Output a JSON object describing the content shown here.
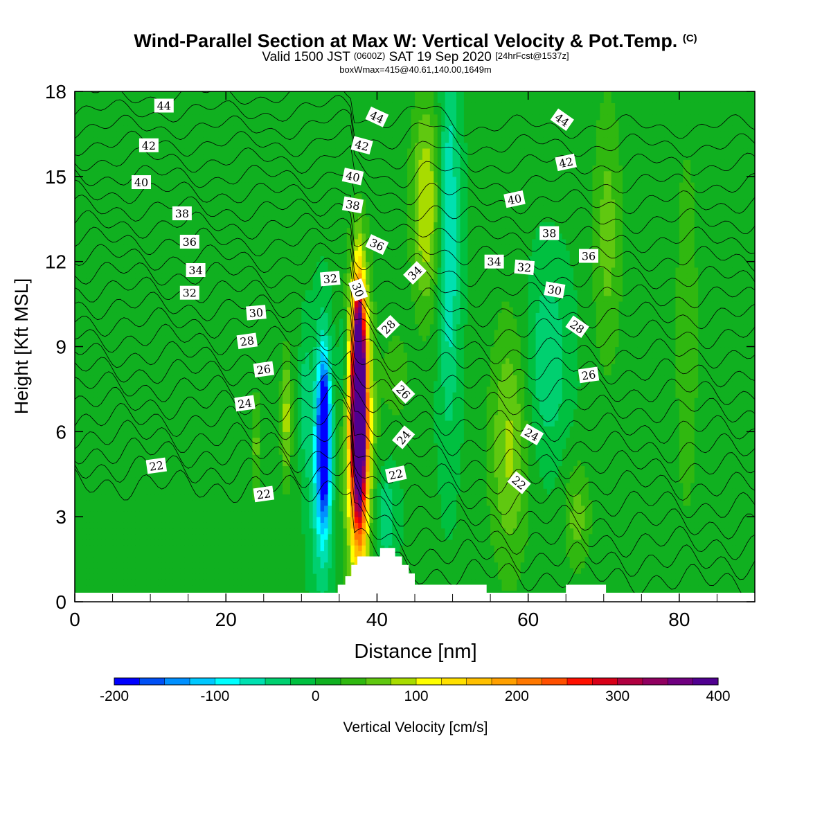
{
  "title": {
    "main": "Wind-Parallel Section at Max W: Vertical Velocity & Pot.Temp.",
    "copyright": "(C)",
    "valid_prefix": "Valid 1500 JST",
    "utc": "(0600Z)",
    "valid_date": "SAT 19 Sep 2020",
    "forecast": "[24hrFcst@1537z]",
    "box": "boxWmax=415@40.61,140.00,1649m"
  },
  "chart_data": {
    "type": "heatmap",
    "xlabel": "Distance [nm]",
    "ylabel": "Height [Kft MSL]",
    "xlim": [
      0,
      90
    ],
    "ylim": [
      0,
      18
    ],
    "x_ticks": [
      0,
      20,
      40,
      60,
      80
    ],
    "y_ticks": [
      0,
      3,
      6,
      9,
      12,
      15,
      18
    ],
    "colorbar": {
      "label": "Vertical Velocity [cm/s]",
      "range": [
        -200,
        400
      ],
      "step": 25,
      "tick_labels": [
        "-200",
        "-100",
        "0",
        "100",
        "200",
        "300",
        "400"
      ],
      "colors": [
        "#0000ff",
        "#0050f5",
        "#0090ff",
        "#00c8ff",
        "#00ffff",
        "#00e0b0",
        "#00d070",
        "#00c040",
        "#10b020",
        "#30b810",
        "#60c810",
        "#a8dc00",
        "#ffff00",
        "#ffe000",
        "#ffc000",
        "#ffa000",
        "#ff7800",
        "#ff5000",
        "#ff1000",
        "#d80018",
        "#b00040",
        "#900060",
        "#700080",
        "#500090"
      ]
    },
    "background_value": 5,
    "features": [
      {
        "x": 33.0,
        "y_center": 6.0,
        "half_width": 0.7,
        "half_height": 2.5,
        "value": -190
      },
      {
        "x": 32.7,
        "y_center": 5.0,
        "half_width": 1.4,
        "half_height": 4.0,
        "value": -120
      },
      {
        "x": 37.6,
        "y_center": 7.5,
        "half_width": 0.6,
        "half_height": 3.0,
        "value": 400
      },
      {
        "x": 37.6,
        "y_center": 6.5,
        "half_width": 1.1,
        "half_height": 4.3,
        "value": 290
      },
      {
        "x": 37.6,
        "y_center": 6.0,
        "half_width": 1.9,
        "half_height": 5.3,
        "value": 150
      },
      {
        "x": 46.5,
        "y_center": 14.0,
        "half_width": 2.0,
        "half_height": 3.8,
        "value": 100
      },
      {
        "x": 49.5,
        "y_center": 13.0,
        "half_width": 1.4,
        "half_height": 6.5,
        "value": -80
      },
      {
        "x": 57.5,
        "y_center": 5.5,
        "half_width": 2.6,
        "half_height": 4.5,
        "value": 80
      },
      {
        "x": 62.5,
        "y_center": 8.5,
        "half_width": 2.8,
        "half_height": 3.2,
        "value": -50
      },
      {
        "x": 66.5,
        "y_center": 3.0,
        "half_width": 1.8,
        "half_height": 2.0,
        "value": 60
      },
      {
        "x": 28.0,
        "y_center": 6.5,
        "half_width": 0.7,
        "half_height": 2.3,
        "value": 90
      },
      {
        "x": 30.5,
        "y_center": 7.0,
        "half_width": 0.6,
        "half_height": 2.5,
        "value": -40
      },
      {
        "x": 35.5,
        "y_center": 8.5,
        "half_width": 0.6,
        "half_height": 1.8,
        "value": -50
      },
      {
        "x": 41.0,
        "y_center": 3.0,
        "half_width": 1.6,
        "half_height": 1.6,
        "value": -50
      },
      {
        "x": 42.5,
        "y_center": 8.0,
        "half_width": 1.8,
        "half_height": 1.8,
        "value": 40
      },
      {
        "x": 70.5,
        "y_center": 13.0,
        "half_width": 2.0,
        "half_height": 5.0,
        "value": 60
      },
      {
        "x": 81.0,
        "y_center": 9.5,
        "half_width": 1.5,
        "half_height": 7.0,
        "value": 50
      },
      {
        "x": 10.0,
        "y_center": 14.0,
        "half_width": 5.0,
        "half_height": 4.0,
        "value": 20
      },
      {
        "x": 24.0,
        "y_center": 5.5,
        "half_width": 0.6,
        "half_height": 2.0,
        "value": 60
      }
    ],
    "terrain": [
      [
        34.8,
        0
      ],
      [
        34.8,
        0.6
      ],
      [
        35.8,
        0.6
      ],
      [
        35.8,
        0.9
      ],
      [
        36.6,
        0.9
      ],
      [
        36.6,
        1.3
      ],
      [
        37.4,
        1.3
      ],
      [
        37.4,
        1.6
      ],
      [
        40.4,
        1.6
      ],
      [
        40.4,
        1.9
      ],
      [
        42.4,
        1.9
      ],
      [
        42.4,
        1.6
      ],
      [
        43.3,
        1.6
      ],
      [
        43.3,
        1.3
      ],
      [
        44.2,
        1.3
      ],
      [
        44.2,
        1.0
      ],
      [
        45.0,
        1.0
      ],
      [
        45.0,
        0.6
      ],
      [
        54.5,
        0.6
      ],
      [
        54.5,
        0
      ],
      [
        65.0,
        0
      ],
      [
        65.0,
        0.6
      ],
      [
        70.3,
        0.6
      ],
      [
        70.3,
        0
      ]
    ],
    "ground_y": 0.32,
    "potential_temperature": {
      "levels": [
        21,
        22,
        23,
        24,
        25,
        26,
        27,
        28,
        29,
        30,
        31,
        32,
        33,
        34,
        35,
        36,
        37,
        38,
        39,
        40,
        41,
        42,
        43,
        44,
        45
      ],
      "labels": [
        {
          "text": "22",
          "x": 10.8,
          "y": 4.8,
          "angle": -8
        },
        {
          "text": "22",
          "x": 25.0,
          "y": 3.8,
          "angle": -8
        },
        {
          "text": "22",
          "x": 42.5,
          "y": 4.5,
          "angle": -12
        },
        {
          "text": "22",
          "x": 58.8,
          "y": 4.2,
          "angle": 40
        },
        {
          "text": "24",
          "x": 22.5,
          "y": 7.0,
          "angle": -8
        },
        {
          "text": "24",
          "x": 43.5,
          "y": 5.8,
          "angle": -50
        },
        {
          "text": "24",
          "x": 60.5,
          "y": 5.9,
          "angle": 30
        },
        {
          "text": "26",
          "x": 25.0,
          "y": 8.2,
          "angle": -8
        },
        {
          "text": "26",
          "x": 43.5,
          "y": 7.4,
          "angle": 45
        },
        {
          "text": "26",
          "x": 68.0,
          "y": 8.0,
          "angle": -8
        },
        {
          "text": "28",
          "x": 22.8,
          "y": 9.2,
          "angle": -8
        },
        {
          "text": "28",
          "x": 41.5,
          "y": 9.7,
          "angle": -45
        },
        {
          "text": "28",
          "x": 66.5,
          "y": 9.7,
          "angle": 35
        },
        {
          "text": "30",
          "x": 24.0,
          "y": 10.2,
          "angle": -5
        },
        {
          "text": "30",
          "x": 37.5,
          "y": 11.0,
          "angle": 70
        },
        {
          "text": "30",
          "x": 63.5,
          "y": 11.0,
          "angle": 10
        },
        {
          "text": "32",
          "x": 15.2,
          "y": 10.9,
          "angle": 0
        },
        {
          "text": "32",
          "x": 33.8,
          "y": 11.4,
          "angle": -5
        },
        {
          "text": "32",
          "x": 59.5,
          "y": 11.8,
          "angle": 5
        },
        {
          "text": "34",
          "x": 16.0,
          "y": 11.7,
          "angle": 0
        },
        {
          "text": "34",
          "x": 45.0,
          "y": 11.6,
          "angle": -45
        },
        {
          "text": "34",
          "x": 55.5,
          "y": 12.0,
          "angle": 0
        },
        {
          "text": "36",
          "x": 15.2,
          "y": 12.7,
          "angle": 0
        },
        {
          "text": "36",
          "x": 40.0,
          "y": 12.6,
          "angle": 25
        },
        {
          "text": "36",
          "x": 68.0,
          "y": 12.2,
          "angle": 0
        },
        {
          "text": "38",
          "x": 14.2,
          "y": 13.7,
          "angle": 0
        },
        {
          "text": "38",
          "x": 36.8,
          "y": 14.0,
          "angle": 10
        },
        {
          "text": "38",
          "x": 62.8,
          "y": 13.0,
          "angle": 0
        },
        {
          "text": "40",
          "x": 8.8,
          "y": 14.8,
          "angle": 0
        },
        {
          "text": "40",
          "x": 36.8,
          "y": 15.0,
          "angle": 12
        },
        {
          "text": "40",
          "x": 58.2,
          "y": 14.2,
          "angle": -12
        },
        {
          "text": "42",
          "x": 9.8,
          "y": 16.1,
          "angle": 0
        },
        {
          "text": "42",
          "x": 38.0,
          "y": 16.1,
          "angle": 15
        },
        {
          "text": "42",
          "x": 65.0,
          "y": 15.5,
          "angle": -12
        },
        {
          "text": "44",
          "x": 11.8,
          "y": 17.5,
          "angle": 0
        },
        {
          "text": "44",
          "x": 40.0,
          "y": 17.1,
          "angle": 25
        },
        {
          "text": "44",
          "x": 64.5,
          "y": 17.0,
          "angle": 35
        }
      ]
    }
  }
}
